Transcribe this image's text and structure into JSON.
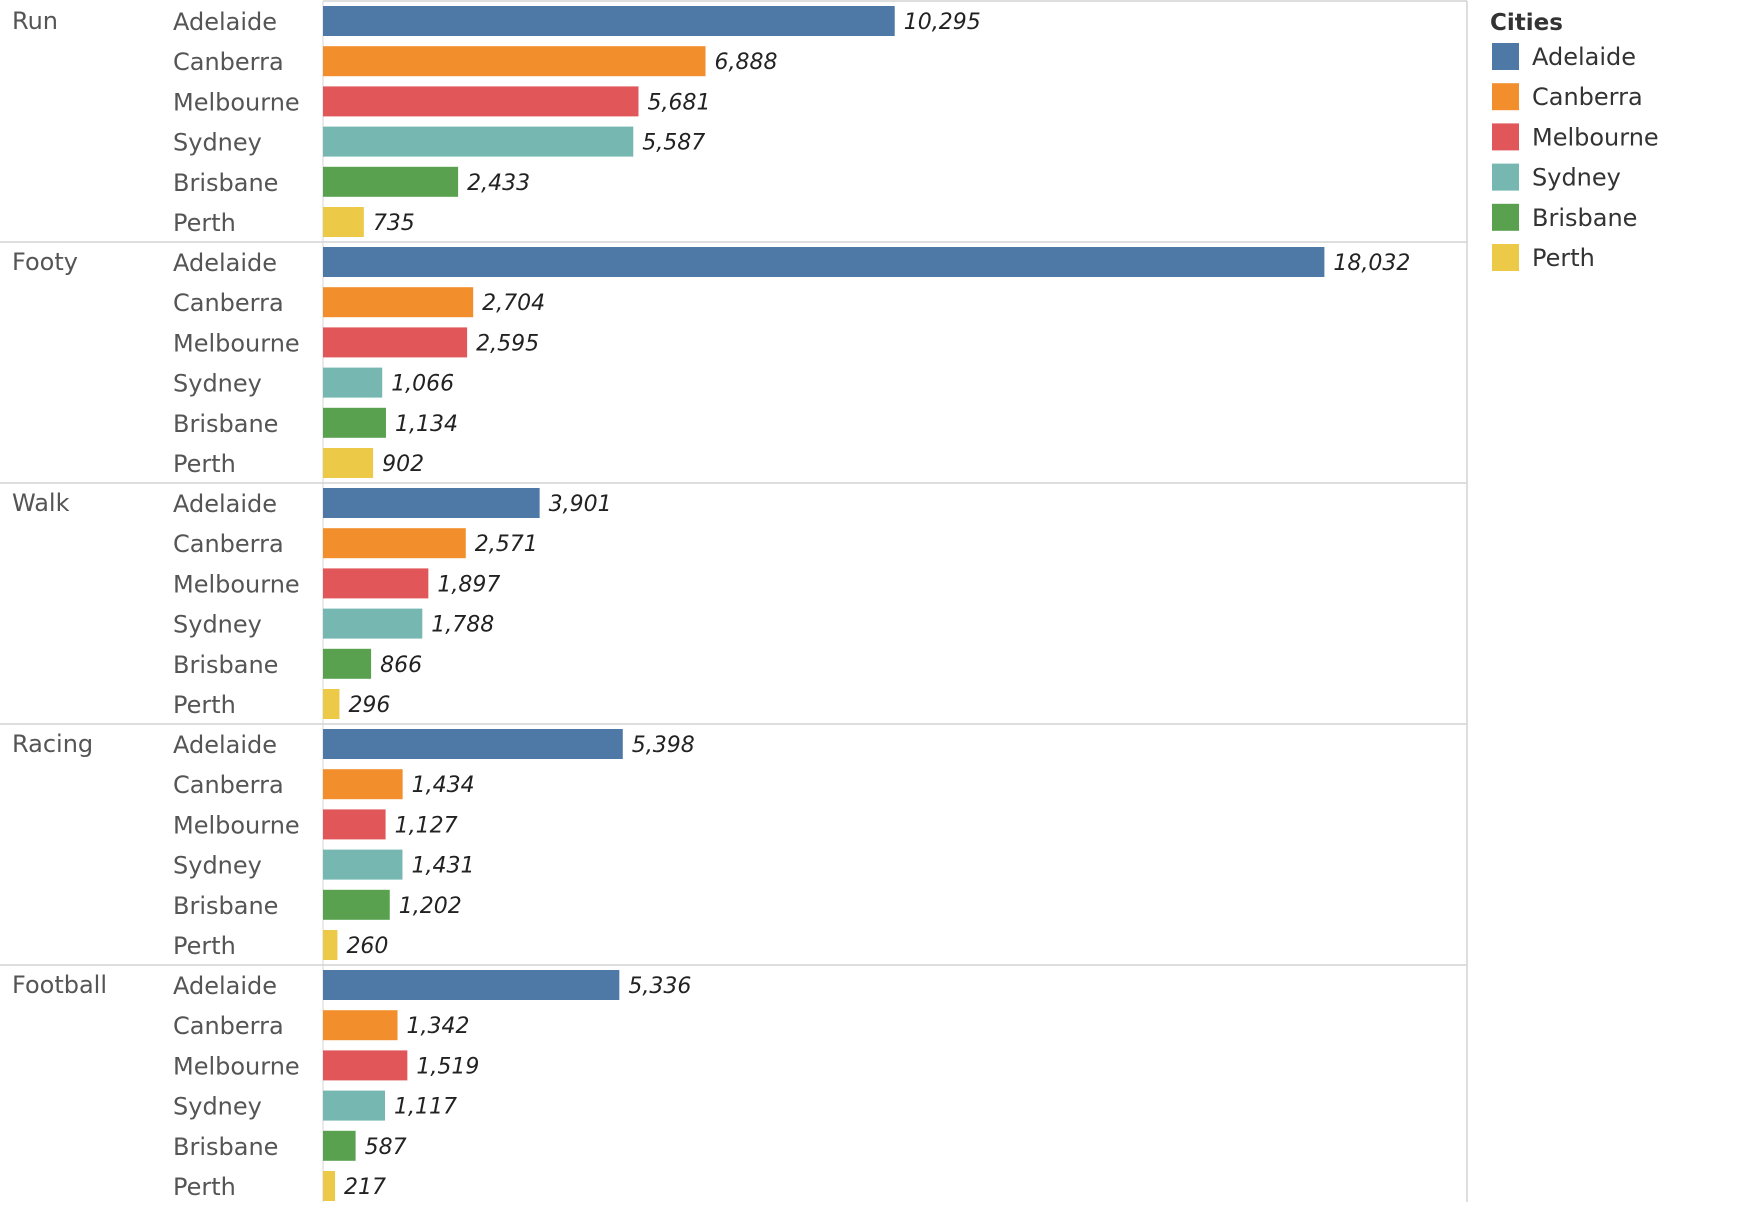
{
  "chart_data": {
    "type": "bar",
    "orientation": "horizontal",
    "groups": [
      "Run",
      "Footy",
      "Walk",
      "Racing",
      "Football"
    ],
    "categories": [
      "Adelaide",
      "Canberra",
      "Melbourne",
      "Sydney",
      "Brisbane",
      "Perth"
    ],
    "series": [
      {
        "group": "Run",
        "values": [
          10295,
          6888,
          5681,
          5587,
          2433,
          735
        ],
        "labels": [
          "10,295",
          "6,888",
          "5,681",
          "5,587",
          "2,433",
          "735"
        ]
      },
      {
        "group": "Footy",
        "values": [
          18032,
          2704,
          2595,
          1066,
          1134,
          902
        ],
        "labels": [
          "18,032",
          "2,704",
          "2,595",
          "1,066",
          "1,134",
          "902"
        ]
      },
      {
        "group": "Walk",
        "values": [
          3901,
          2571,
          1897,
          1788,
          866,
          296
        ],
        "labels": [
          "3,901",
          "2,571",
          "1,897",
          "1,788",
          "866",
          "296"
        ]
      },
      {
        "group": "Racing",
        "values": [
          5398,
          1434,
          1127,
          1431,
          1202,
          260
        ],
        "labels": [
          "5,398",
          "1,434",
          "1,127",
          "1,431",
          "1,202",
          "260"
        ]
      },
      {
        "group": "Football",
        "values": [
          5336,
          1342,
          1519,
          1117,
          587,
          217
        ],
        "labels": [
          "5,336",
          "1,342",
          "1,519",
          "1,117",
          "587",
          "217"
        ]
      }
    ],
    "colors": {
      "Adelaide": "#4e79a7",
      "Canberra": "#f28e2b",
      "Melbourne": "#e15759",
      "Sydney": "#76b7b2",
      "Brisbane": "#59a14f",
      "Perth": "#edc948"
    },
    "xlim": [
      0,
      20600
    ],
    "legend": {
      "title": "Cities",
      "items": [
        "Adelaide",
        "Canberra",
        "Melbourne",
        "Sydney",
        "Brisbane",
        "Perth"
      ],
      "position": "right"
    },
    "title": "",
    "xlabel": "",
    "ylabel": "",
    "grid": false
  }
}
